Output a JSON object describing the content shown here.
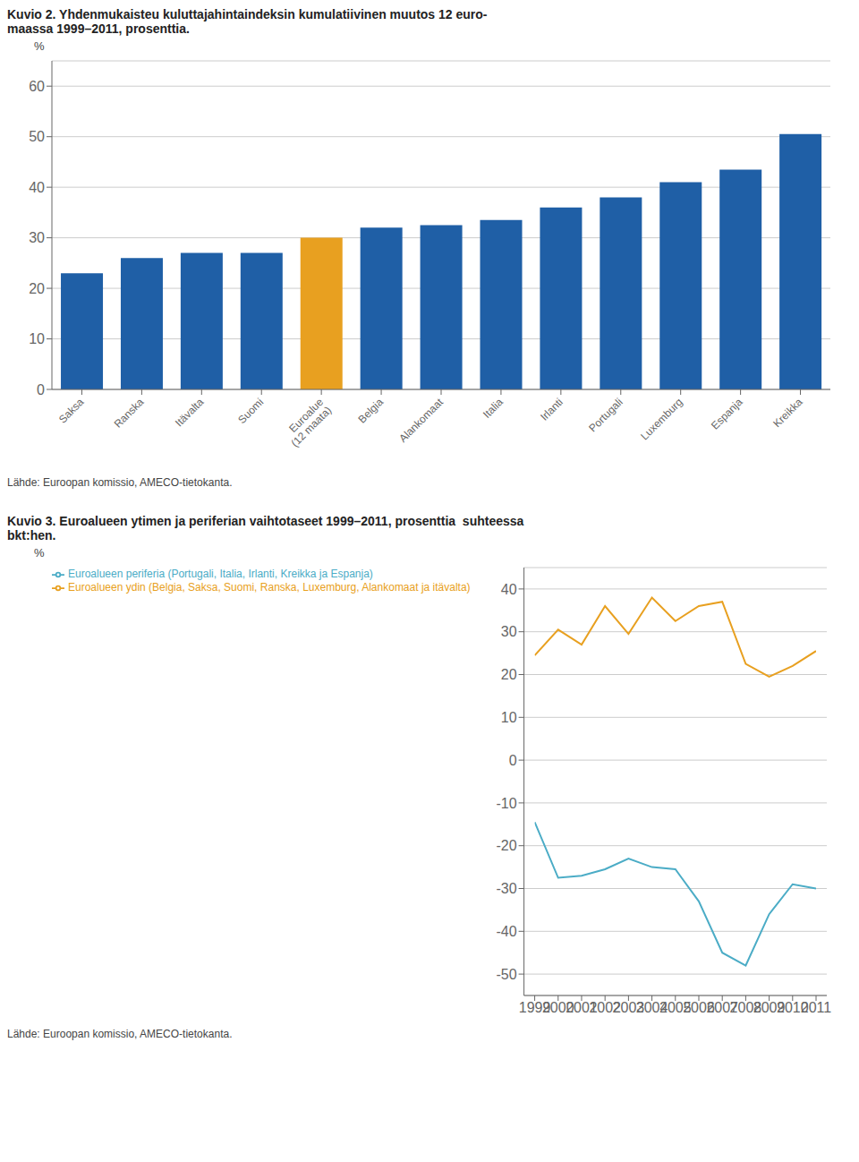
{
  "chart_data": [
    {
      "type": "bar",
      "title": "Kuvio 2. Yhdenmukaisteu kuluttajahintaindeksin kumulatiivinen muutos 12 euro-\nmaassa 1999–2011, prosenttia.",
      "categories": [
        "Saksa",
        "Ranska",
        "Itävalta",
        "Suomi",
        "Euroalue\n(12 maata)",
        "Belgia",
        "Alankomaat",
        "Italia",
        "Irlanti",
        "Portugali",
        "Luxemburg",
        "Espanja",
        "Kreikka"
      ],
      "values": [
        23,
        26,
        27,
        27,
        30,
        32,
        32.5,
        33.5,
        36,
        38,
        41,
        43.5,
        50.5
      ],
      "colors": [
        "#1f5fa6",
        "#1f5fa6",
        "#1f5fa6",
        "#1f5fa6",
        "#e8a020",
        "#1f5fa6",
        "#1f5fa6",
        "#1f5fa6",
        "#1f5fa6",
        "#1f5fa6",
        "#1f5fa6",
        "#1f5fa6",
        "#1f5fa6"
      ],
      "y_label": "%",
      "ylim": [
        0,
        65
      ],
      "yticks": [
        0,
        10,
        20,
        30,
        40,
        50,
        60
      ],
      "grid": true,
      "annotations": [
        "Lähde: Euroopan komissio, AMECO-tietokanta."
      ]
    },
    {
      "type": "line",
      "title": "Kuvio 3. Euroalueen ytimen ja periferian vaihtotaseet 1999–2011, prosenttia  suhteessa\nbkt:hen.",
      "x": [
        1999,
        2000,
        2001,
        2002,
        2003,
        2004,
        2005,
        2006,
        2007,
        2008,
        2009,
        2010,
        2011
      ],
      "xlim": [
        1999,
        2011
      ],
      "xticks": [
        1999,
        2000,
        2001,
        2002,
        2003,
        2004,
        2005,
        2006,
        2007,
        2008,
        2009,
        2010,
        2011
      ],
      "series": [
        {
          "name": "Euroalueen ydin (Belgia, Saksa, Suomi, Ranska, Luxemburg, Alankomaat ja itävalta)",
          "color": "#e8a020",
          "values": [
            24.5,
            30.5,
            27,
            36,
            29.5,
            38,
            32.5,
            36,
            37,
            22.5,
            19.5,
            22,
            25.5
          ]
        },
        {
          "name": "Euroalueen periferia (Portugali, Italia, Irlanti, Kreikka ja Espanja)",
          "color": "#4bacc6",
          "values": [
            -14.5,
            -27.5,
            -27,
            -25.5,
            -23,
            -25,
            -25.5,
            -33,
            -45,
            -48,
            -36,
            -29,
            -30
          ]
        }
      ],
      "y_label": "%",
      "ylim": [
        -55,
        45
      ],
      "yticks": [
        -50,
        -40,
        -30,
        -20,
        -10,
        0,
        10,
        20,
        30,
        40
      ],
      "grid": true,
      "legend": "upper left",
      "annotations": [
        "Lähde: Euroopan komissio, AMECO-tietokanta."
      ]
    }
  ]
}
